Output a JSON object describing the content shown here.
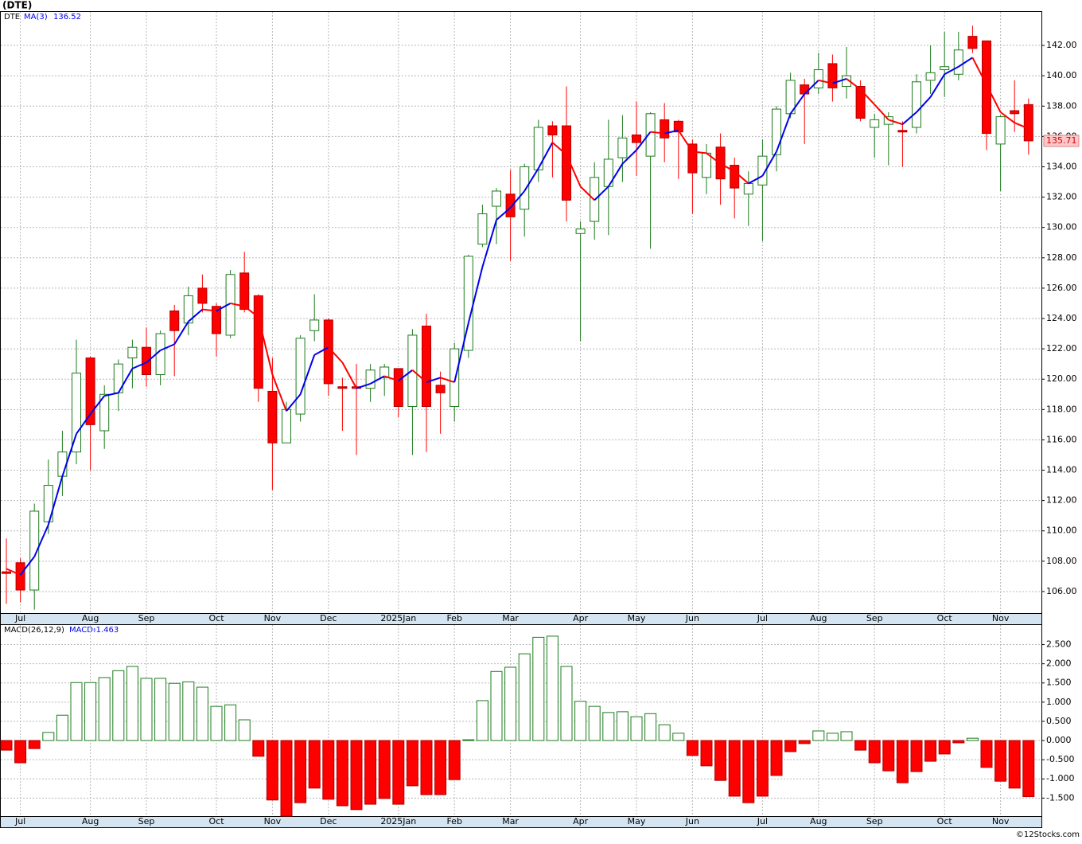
{
  "chart_data": [
    {
      "type": "candlestick",
      "title": "(DTE)",
      "symbol": "DTE",
      "ma_name": "MA(3)",
      "categories": [
        null,
        "Jul",
        null,
        null,
        null,
        null,
        "Aug",
        null,
        null,
        null,
        "Sep",
        null,
        null,
        null,
        null,
        "Oct",
        null,
        null,
        null,
        "Nov",
        null,
        null,
        null,
        "Dec",
        null,
        null,
        null,
        null,
        "2025Jan",
        null,
        null,
        null,
        "Feb",
        null,
        null,
        null,
        "Mar",
        null,
        null,
        null,
        null,
        "Apr",
        null,
        null,
        null,
        "May",
        null,
        null,
        null,
        "Jun",
        null,
        null,
        null,
        null,
        "Jul",
        null,
        null,
        null,
        "Aug",
        null,
        null,
        null,
        "Sep",
        null,
        null,
        null,
        null,
        "Oct",
        null,
        null,
        null,
        "Nov",
        null,
        null
      ],
      "open": [
        107.3,
        107.9,
        106.1,
        110.6,
        113.6,
        115.2,
        121.4,
        116.6,
        119.1,
        121.4,
        122.1,
        120.3,
        124.5,
        123.7,
        126.0,
        124.8,
        122.9,
        127.0,
        125.5,
        119.2,
        115.8,
        117.7,
        123.2,
        123.9,
        119.5,
        119.5,
        119.4,
        120.1,
        120.7,
        118.2,
        123.5,
        119.6,
        118.2,
        121.9,
        128.9,
        131.4,
        132.2,
        131.2,
        133.8,
        136.7,
        136.7,
        129.6,
        130.4,
        132.7,
        134.6,
        136.1,
        134.7,
        137.1,
        137.0,
        135.5,
        133.3,
        135.3,
        134.1,
        132.2,
        132.8,
        134.8,
        137.5,
        139.4,
        139.2,
        140.8,
        139.3,
        139.3,
        136.6,
        136.8,
        136.4,
        136.6,
        139.7,
        140.4,
        140.1,
        142.6,
        142.3,
        135.5,
        137.7,
        138.1
      ],
      "high": [
        109.5,
        108.2,
        111.8,
        114.7,
        116.6,
        122.6,
        121.5,
        119.6,
        121.3,
        122.6,
        123.4,
        123.2,
        124.9,
        126.1,
        126.9,
        125.0,
        127.2,
        128.4,
        125.6,
        121.4,
        118.5,
        122.9,
        125.6,
        124.0,
        120.1,
        121.0,
        121.0,
        121.0,
        120.7,
        123.3,
        124.3,
        120.5,
        122.4,
        128.2,
        131.5,
        132.6,
        133.8,
        134.2,
        137.1,
        137.0,
        139.3,
        130.4,
        134.3,
        137.1,
        137.4,
        138.3,
        137.6,
        138.2,
        137.1,
        135.8,
        135.5,
        136.2,
        134.6,
        133.7,
        135.8,
        138.0,
        140.2,
        139.8,
        141.5,
        141.4,
        141.9,
        139.7,
        137.5,
        137.6,
        137.0,
        140.1,
        142.0,
        142.9,
        142.9,
        143.3,
        142.3,
        137.4,
        139.7,
        138.5
      ],
      "low": [
        105.2,
        105.3,
        104.8,
        109.8,
        112.3,
        114.4,
        114.0,
        115.4,
        117.9,
        119.4,
        119.5,
        119.6,
        120.2,
        122.9,
        124.4,
        121.5,
        122.7,
        124.4,
        118.5,
        112.7,
        115.8,
        117.2,
        122.5,
        118.9,
        116.6,
        115.0,
        118.5,
        118.9,
        117.5,
        115.0,
        115.2,
        116.4,
        117.2,
        121.4,
        128.7,
        128.9,
        127.8,
        129.4,
        133.0,
        133.3,
        130.4,
        122.5,
        129.2,
        129.5,
        133.0,
        133.4,
        128.6,
        134.3,
        133.2,
        130.9,
        132.2,
        131.5,
        130.6,
        130.1,
        129.1,
        133.7,
        137.2,
        135.5,
        138.8,
        138.3,
        138.5,
        137.0,
        134.6,
        134.1,
        134.0,
        136.2,
        138.8,
        138.6,
        139.7,
        141.5,
        135.1,
        132.4,
        136.3,
        134.8
      ],
      "close": [
        107.2,
        106.1,
        111.3,
        113.0,
        115.2,
        120.4,
        117.0,
        119.0,
        121.0,
        122.1,
        120.3,
        123.0,
        123.2,
        125.5,
        125.0,
        123.0,
        126.9,
        124.6,
        119.4,
        115.8,
        118.0,
        122.7,
        123.9,
        119.7,
        119.4,
        119.4,
        120.6,
        120.8,
        118.2,
        122.9,
        118.2,
        119.1,
        122.0,
        128.1,
        130.9,
        132.4,
        130.7,
        134.0,
        136.6,
        136.1,
        131.8,
        129.9,
        133.3,
        134.5,
        135.9,
        135.6,
        137.5,
        135.9,
        136.3,
        133.6,
        134.9,
        133.2,
        132.6,
        132.9,
        134.7,
        137.8,
        139.7,
        138.8,
        140.4,
        139.2,
        140.0,
        137.2,
        137.1,
        137.3,
        136.3,
        139.6,
        140.2,
        140.6,
        141.7,
        141.8,
        136.2,
        137.3,
        137.5,
        135.71
      ],
      "ma": [
        107.5,
        107.1,
        108.3,
        110.4,
        113.6,
        116.4,
        117.7,
        118.9,
        119.1,
        120.7,
        121.1,
        121.9,
        122.3,
        123.8,
        124.6,
        124.5,
        125.0,
        124.8,
        124.1,
        120.3,
        117.9,
        119.0,
        121.6,
        122.1,
        121.1,
        119.4,
        119.7,
        120.2,
        119.9,
        120.6,
        119.8,
        120.1,
        119.8,
        123.7,
        127.4,
        130.5,
        131.3,
        132.4,
        133.9,
        135.6,
        134.8,
        132.7,
        131.8,
        132.7,
        134.2,
        135.1,
        136.3,
        136.2,
        136.4,
        135.0,
        134.9,
        134.2,
        133.7,
        132.9,
        133.4,
        135.0,
        137.5,
        138.8,
        139.7,
        139.5,
        139.8,
        139.1,
        138.1,
        137.1,
        136.8,
        137.6,
        138.6,
        140.1,
        140.6,
        141.2,
        139.4,
        137.6,
        136.9,
        136.52
      ],
      "up_color": "#1e7b1e",
      "down_color": "#ff0000",
      "ma_up_color": "#0000ee",
      "ma_down_color": "#ff0000",
      "ylim": [
        104.58,
        144.26
      ],
      "yticks": [
        {
          "value": 106,
          "label": "106.00"
        },
        {
          "value": 108,
          "label": "108.00"
        },
        {
          "value": 110,
          "label": "110.00"
        },
        {
          "value": 112,
          "label": "112.00"
        },
        {
          "value": 114,
          "label": "114.00"
        },
        {
          "value": 116,
          "label": "116.00"
        },
        {
          "value": 118,
          "label": "118.00"
        },
        {
          "value": 120,
          "label": "120.00"
        },
        {
          "value": 122,
          "label": "122.00"
        },
        {
          "value": 124,
          "label": "124.00"
        },
        {
          "value": 126,
          "label": "126.00"
        },
        {
          "value": 128,
          "label": "128.00"
        },
        {
          "value": 130,
          "label": "130.00"
        },
        {
          "value": 132,
          "label": "132.00"
        },
        {
          "value": 134,
          "label": "134.00"
        },
        {
          "value": 136,
          "label": "136.00"
        },
        {
          "value": 138,
          "label": "138.00"
        },
        {
          "value": 140,
          "label": "140.00"
        },
        {
          "value": 142,
          "label": "142.00"
        }
      ],
      "grid": true
    },
    {
      "type": "bar",
      "name": "MACD(26,12,9)",
      "value_name": "MACD:",
      "values": [
        -0.25,
        -0.58,
        -0.21,
        0.21,
        0.66,
        1.51,
        1.51,
        1.64,
        1.82,
        1.93,
        1.62,
        1.62,
        1.49,
        1.53,
        1.39,
        0.89,
        0.93,
        0.54,
        -0.41,
        -1.55,
        -1.97,
        -1.62,
        -1.24,
        -1.53,
        -1.7,
        -1.8,
        -1.66,
        -1.51,
        -1.66,
        -1.18,
        -1.41,
        -1.41,
        -1.02,
        0.02,
        1.04,
        1.8,
        1.91,
        2.26,
        2.69,
        2.72,
        1.93,
        1.02,
        0.89,
        0.73,
        0.75,
        0.62,
        0.7,
        0.41,
        0.19,
        -0.39,
        -0.66,
        -1.04,
        -1.45,
        -1.62,
        -1.45,
        -0.91,
        -0.29,
        -0.08,
        0.25,
        0.19,
        0.23,
        -0.25,
        -0.58,
        -0.79,
        -1.1,
        -0.81,
        -0.54,
        -0.35,
        -0.06,
        0.06,
        -0.7,
        -1.06,
        -1.24,
        -1.463
      ],
      "up_color": "#1e7b1e",
      "down_color": "#ff0000",
      "ylim": [
        -1.97,
        3.03
      ],
      "yticks": [
        {
          "value": -1.5,
          "label": "-1.500"
        },
        {
          "value": -1,
          "label": "-1.000"
        },
        {
          "value": -0.5,
          "label": "-0.500"
        },
        {
          "value": 0,
          "label": "0.000"
        },
        {
          "value": 0.5,
          "label": "0.500"
        },
        {
          "value": 1,
          "label": "1.000"
        },
        {
          "value": 1.5,
          "label": "1.500"
        },
        {
          "value": 2,
          "label": "2.000"
        },
        {
          "value": 2.5,
          "label": "2.500"
        }
      ],
      "grid": true
    }
  ],
  "source": "©12Stocks.com"
}
